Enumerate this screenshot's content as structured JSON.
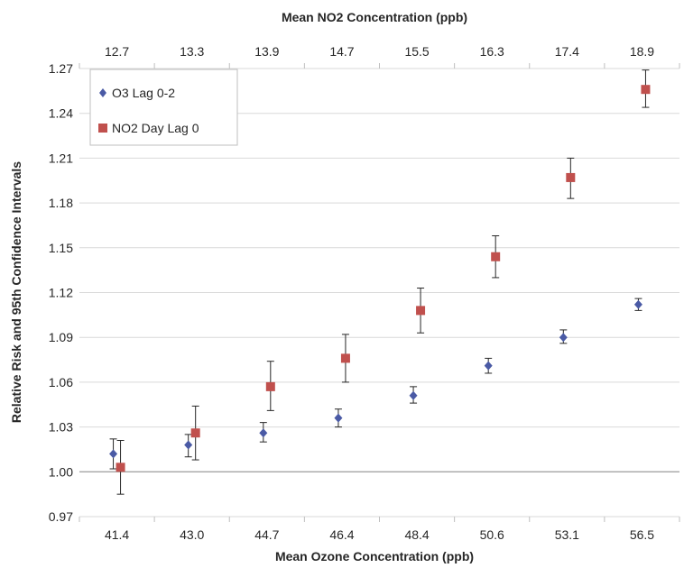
{
  "chart_data": {
    "type": "scatter",
    "title": "Mean NO2 Concentration (ppb)",
    "xlabel": "Mean Ozone Concentration (ppb)",
    "ylabel": "Relative Risk and 95th Confidence Intervals",
    "x_bottom_categories": [
      "41.4",
      "43.0",
      "44.7",
      "46.4",
      "48.4",
      "50.6",
      "53.1",
      "56.5"
    ],
    "x_top_categories": [
      "12.7",
      "13.3",
      "13.9",
      "14.7",
      "15.5",
      "16.3",
      "17.4",
      "18.9"
    ],
    "y_ticks": [
      "0.97",
      "1.00",
      "1.03",
      "1.06",
      "1.09",
      "1.12",
      "1.15",
      "1.18",
      "1.21",
      "1.24",
      "1.27"
    ],
    "ylim": [
      0.97,
      1.27
    ],
    "grid": true,
    "legend_position": "top-left",
    "series": [
      {
        "name": "O3 Lag 0-2",
        "marker": "diamond",
        "color": "#4a5aa5",
        "values": [
          1.012,
          1.018,
          1.026,
          1.036,
          1.051,
          1.071,
          1.09,
          1.112
        ],
        "lower": [
          1.002,
          1.01,
          1.02,
          1.03,
          1.046,
          1.066,
          1.086,
          1.108
        ],
        "upper": [
          1.022,
          1.025,
          1.033,
          1.042,
          1.057,
          1.076,
          1.095,
          1.116
        ]
      },
      {
        "name": "NO2 Day Lag 0",
        "marker": "square",
        "color": "#c0504d",
        "values": [
          1.003,
          1.026,
          1.057,
          1.076,
          1.108,
          1.144,
          1.197,
          1.256
        ],
        "lower": [
          0.985,
          1.008,
          1.041,
          1.06,
          1.093,
          1.13,
          1.183,
          1.244
        ],
        "upper": [
          1.021,
          1.044,
          1.074,
          1.092,
          1.123,
          1.158,
          1.21,
          1.269
        ]
      }
    ]
  }
}
